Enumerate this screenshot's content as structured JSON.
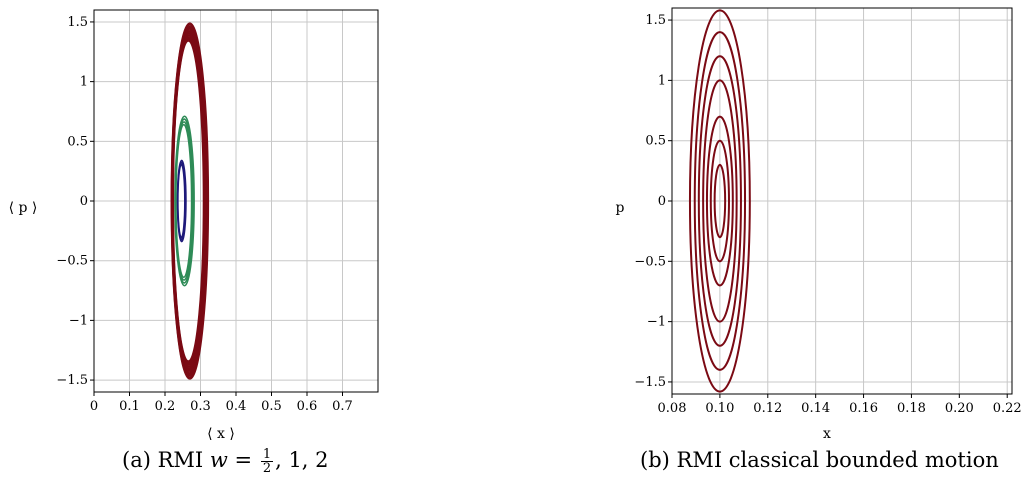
{
  "captions": {
    "a": {
      "prefix": "(a) RMI ",
      "var": "w",
      "eq": " = ",
      "frac_num": "1",
      "frac_den": "2",
      "rest": ", 1, 2"
    },
    "b": "(b) RMI classical bounded motion"
  },
  "colors": {
    "red": "#7b0a14",
    "green": "#2e8b57",
    "blue": "#1f1a7a",
    "grid": "#c8c8c8"
  },
  "chart_data": [
    {
      "type": "line",
      "xlabel": "⟨ x ⟩",
      "ylabel": "⟨ p ⟩",
      "xlim": [
        0,
        0.8
      ],
      "ylim": [
        -1.6,
        1.6
      ],
      "xticks": [
        0,
        0.1,
        0.2,
        0.3,
        0.4,
        0.5,
        0.6,
        0.7
      ],
      "xtick_labels": [
        "0",
        "0.1",
        "0.2",
        "0.3",
        "0.4",
        "0.5",
        "0.6",
        "0.7"
      ],
      "yticks": [
        -1.5,
        -1,
        -0.5,
        0,
        0.5,
        1,
        1.5
      ],
      "ytick_labels": [
        "−1.5",
        "−1",
        "−0.5",
        "0",
        "0.5",
        "1",
        "1.5"
      ],
      "grid": true,
      "series": [
        {
          "color": "#1f1a7a",
          "center_x": 0.247,
          "half_width_x": 0.012,
          "amplitude_p": 0.34,
          "rings": 3
        },
        {
          "color": "#2e8b57",
          "center_x": 0.255,
          "half_width_x": 0.027,
          "amplitude_p": 0.71,
          "rings": 4
        },
        {
          "color": "#7b0a14",
          "center_x": 0.27,
          "half_width_x": 0.052,
          "amplitude_p": 1.49,
          "rings": 14
        }
      ]
    },
    {
      "type": "line",
      "xlabel": "x",
      "ylabel": "p",
      "xlim": [
        0.08,
        0.222
      ],
      "ylim": [
        -1.6,
        1.6
      ],
      "xticks": [
        0.08,
        0.1,
        0.12,
        0.14,
        0.16,
        0.18,
        0.2,
        0.22
      ],
      "xtick_labels": [
        "0.08",
        "0.10",
        "0.12",
        "0.14",
        "0.16",
        "0.18",
        "0.20",
        "0.22"
      ],
      "yticks": [
        -1.5,
        -1,
        -0.5,
        0,
        0.5,
        1,
        1.5
      ],
      "ytick_labels": [
        "−1.5",
        "−1",
        "−0.5",
        "0",
        "0.5",
        "1",
        "1.5"
      ],
      "grid": true,
      "series": [
        {
          "color": "#7b0a14",
          "center_x": 0.1,
          "orbits": [
            {
              "half_width_x": 0.0022,
              "amplitude_p": 0.3
            },
            {
              "half_width_x": 0.0038,
              "amplitude_p": 0.5
            },
            {
              "half_width_x": 0.0054,
              "amplitude_p": 0.7
            },
            {
              "half_width_x": 0.007,
              "amplitude_p": 1.0
            },
            {
              "half_width_x": 0.0088,
              "amplitude_p": 1.2
            },
            {
              "half_width_x": 0.0105,
              "amplitude_p": 1.4
            },
            {
              "half_width_x": 0.0125,
              "amplitude_p": 1.58
            }
          ]
        }
      ]
    }
  ]
}
